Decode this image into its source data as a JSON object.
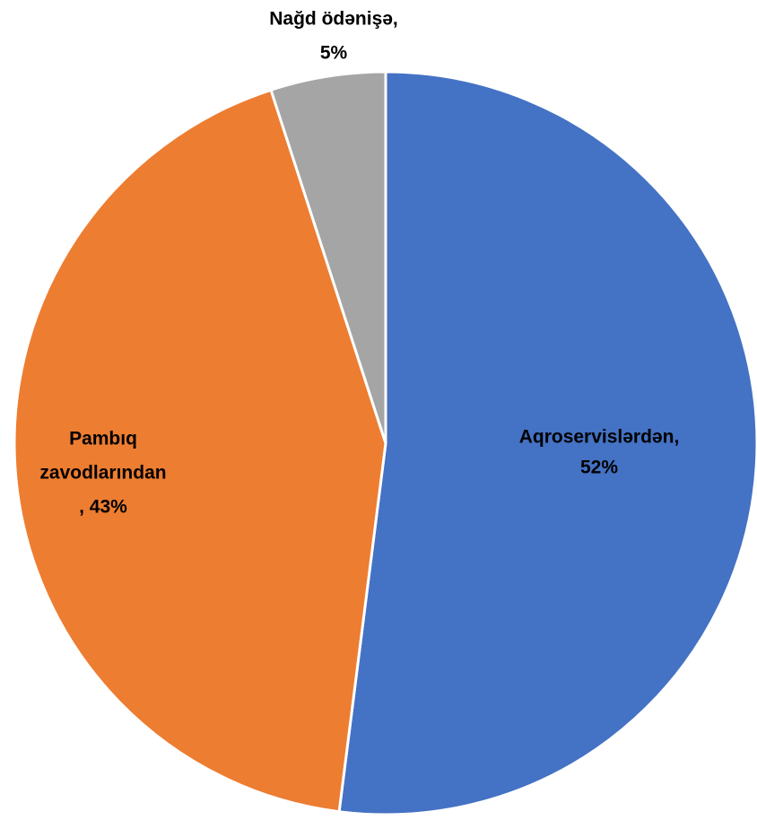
{
  "chart_data": {
    "type": "pie",
    "values": [
      52,
      43,
      5
    ],
    "value_labels": [
      [
        "Aqroservislərdən,",
        "52%"
      ],
      [
        "Pambıq",
        "zavodlarından",
        ", 43%"
      ],
      [
        "Nağd ödənişə,",
        "5%"
      ]
    ],
    "colors": [
      "#4472c4",
      "#ed7d31",
      "#a5a5a5"
    ],
    "start_angle": 90,
    "direction": "clockwise"
  }
}
